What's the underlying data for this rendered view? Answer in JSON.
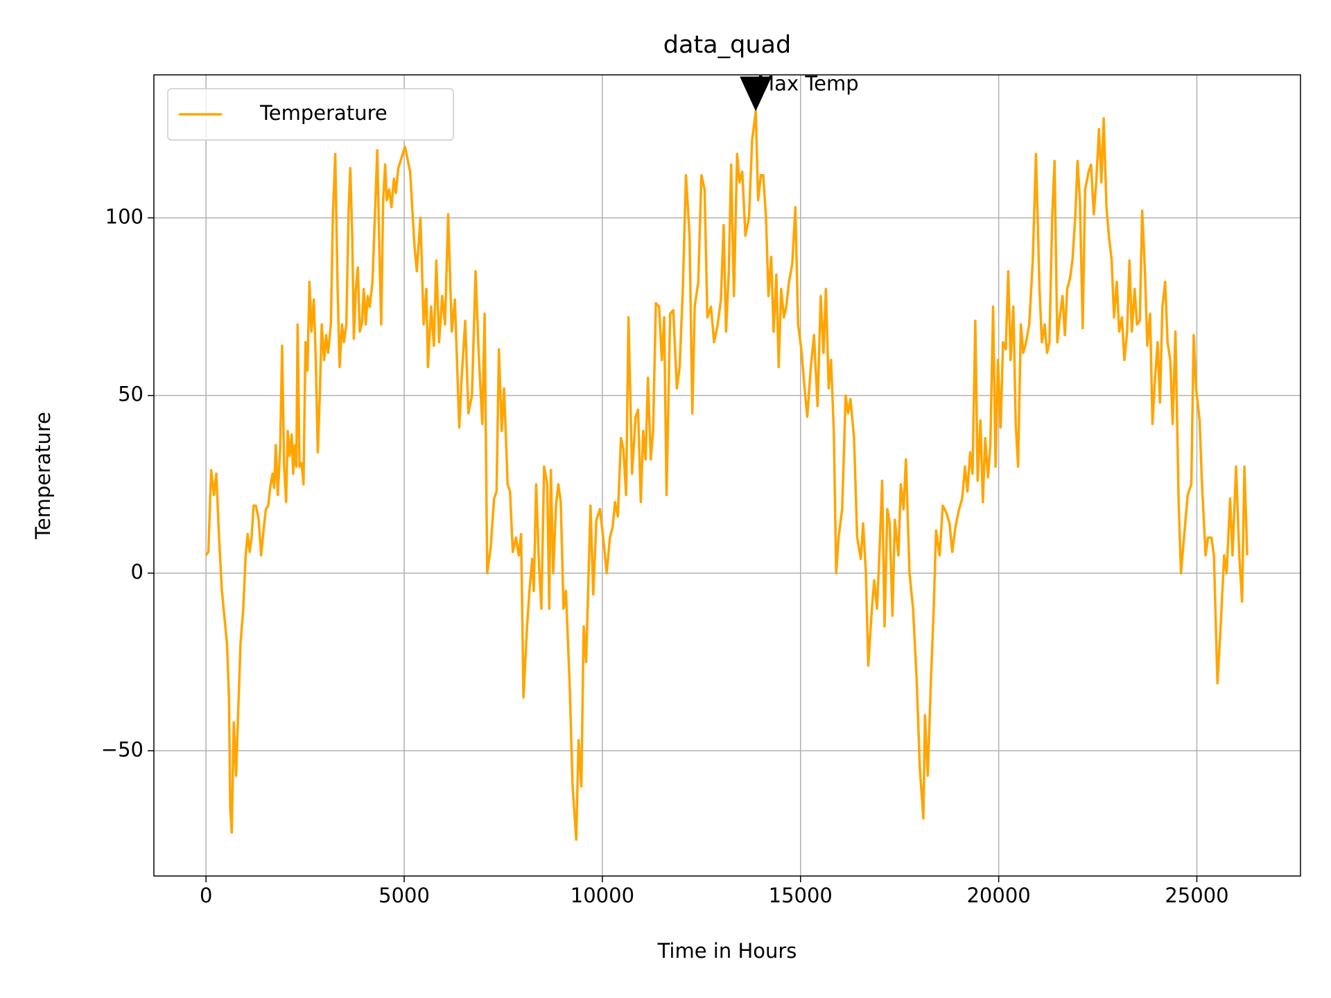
{
  "chart_data": {
    "type": "line",
    "title": "data_quad",
    "xlabel": "Time in Hours",
    "ylabel": "Temperature",
    "xlim": [
      -1315,
      27615
    ],
    "ylim": [
      -85.25,
      140.25
    ],
    "xticks": [
      0,
      5000,
      10000,
      15000,
      20000,
      25000
    ],
    "yticks": [
      {
        "value": -50,
        "label": "−50"
      },
      0,
      50,
      100
    ],
    "grid": true,
    "legend": "upper left",
    "x": [
      0,
      60,
      130,
      200,
      260,
      330,
      400,
      530,
      580,
      610,
      650,
      700,
      760,
      800,
      870,
      940,
      1000,
      1050,
      1100,
      1150,
      1200,
      1260,
      1330,
      1390,
      1450,
      1510,
      1570,
      1630,
      1680,
      1720,
      1760,
      1810,
      1870,
      1920,
      1970,
      2020,
      2060,
      2110,
      2160,
      2200,
      2240,
      2280,
      2310,
      2360,
      2410,
      2460,
      2510,
      2560,
      2610,
      2660,
      2720,
      2770,
      2820,
      2870,
      2920,
      2980,
      3030,
      3080,
      3150,
      3200,
      3260,
      3320,
      3370,
      3430,
      3480,
      3540,
      3600,
      3640,
      3690,
      3730,
      3780,
      3830,
      3880,
      3930,
      3980,
      4030,
      4080,
      4130,
      4200,
      4260,
      4320,
      4380,
      4420,
      4470,
      4520,
      4560,
      4620,
      4680,
      4740,
      4790,
      4850,
      5020,
      5150,
      5260,
      5320,
      5410,
      5490,
      5560,
      5600,
      5680,
      5750,
      5810,
      5880,
      5960,
      6030,
      6110,
      6200,
      6280,
      6390,
      6450,
      6540,
      6620,
      6710,
      6800,
      6880,
      6970,
      7030,
      7095,
      7180,
      7270,
      7330,
      7390,
      7460,
      7520,
      7610,
      7670,
      7740,
      7820,
      7890,
      7950,
      8010,
      8100,
      8160,
      8230,
      8270,
      8330,
      8400,
      8460,
      8530,
      8610,
      8660,
      8700,
      8760,
      8830,
      8890,
      8950,
      9020,
      9080,
      9170,
      9250,
      9340,
      9400,
      9470,
      9530,
      9590,
      9700,
      9770,
      9850,
      9940,
      10020,
      10110,
      10190,
      10260,
      10320,
      10390,
      10470,
      10530,
      10600,
      10660,
      10750,
      10840,
      10900,
      10970,
      11030,
      11090,
      11150,
      11220,
      11280,
      11350,
      11430,
      11500,
      11560,
      11620,
      11710,
      11790,
      11880,
      11950,
      12030,
      12110,
      12200,
      12270,
      12330,
      12420,
      12500,
      12580,
      12650,
      12740,
      12820,
      12910,
      12990,
      13060,
      13120,
      13190,
      13250,
      13320,
      13400,
      13460,
      13530,
      13610,
      13700,
      13780,
      13870,
      13930,
      14000,
      14060,
      14130,
      14190,
      14260,
      14320,
      14390,
      14450,
      14510,
      14580,
      14640,
      14710,
      14790,
      14870,
      14940,
      15020,
      15110,
      15170,
      15260,
      15340,
      15430,
      15510,
      15580,
      15640,
      15710,
      15770,
      15840,
      15900,
      15960,
      16050,
      16140,
      16200,
      16260,
      16350,
      16430,
      16520,
      16580,
      16650,
      16710,
      16800,
      16860,
      16930,
      16990,
      17060,
      17120,
      17190,
      17250,
      17320,
      17380,
      17470,
      17530,
      17600,
      17660,
      17750,
      17840,
      17930,
      18010,
      18100,
      18140,
      18210,
      18290,
      18360,
      18420,
      18510,
      18590,
      18680,
      18760,
      18830,
      18910,
      19000,
      19080,
      19150,
      19210,
      19280,
      19340,
      19410,
      19470,
      19540,
      19600,
      19660,
      19730,
      19790,
      19860,
      19920,
      19980,
      20050,
      20110,
      20180,
      20240,
      20300,
      20370,
      20430,
      20490,
      20560,
      20620,
      20690,
      20770,
      20860,
      20940,
      21030,
      21090,
      21160,
      21220,
      21280,
      21350,
      21410,
      21480,
      21540,
      21610,
      21670,
      21730,
      21800,
      21860,
      21930,
      21990,
      22050,
      22120,
      22180,
      22270,
      22330,
      22400,
      22460,
      22530,
      22590,
      22650,
      22720,
      22780,
      22850,
      22910,
      22980,
      23040,
      23110,
      23170,
      23240,
      23300,
      23360,
      23430,
      23490,
      23560,
      23620,
      23690,
      23750,
      23820,
      23880,
      23940,
      24010,
      24070,
      24130,
      24200,
      24260,
      24330,
      24390,
      24460,
      24540,
      24600,
      24690,
      24770,
      24860,
      24920,
      24980,
      25070,
      25130,
      25220,
      25280,
      25370,
      25430,
      25520,
      25600,
      25690,
      25750,
      25840,
      25900,
      25990,
      26070,
      26140,
      26200,
      26270
    ],
    "series": [
      {
        "name": "Temperature",
        "color": "#ffa500",
        "values": [
          5,
          6,
          29,
          22,
          28,
          10,
          -5,
          -20,
          -35,
          -66,
          -73,
          -42,
          -57,
          -43,
          -20,
          -10,
          5,
          11,
          6,
          10,
          19,
          19,
          15,
          5,
          12,
          18,
          19,
          25,
          28,
          24,
          36,
          22,
          35,
          64,
          30,
          20,
          40,
          33,
          39,
          28,
          36,
          30,
          70,
          30,
          31,
          25,
          65,
          57,
          82,
          68,
          77,
          60,
          34,
          50,
          70,
          60,
          67,
          62,
          70,
          100,
          118,
          80,
          58,
          70,
          65,
          70,
          103,
          114,
          95,
          66,
          80,
          86,
          68,
          70,
          80,
          70,
          78,
          75,
          82,
          100,
          119,
          88,
          70,
          105,
          115,
          105,
          108,
          103,
          111,
          107,
          114,
          120,
          113,
          92,
          85,
          100,
          70,
          80,
          58,
          75,
          64,
          88,
          65,
          78,
          70,
          101,
          68,
          77,
          41,
          55,
          71,
          45,
          50,
          85,
          62,
          42,
          73,
          0,
          7,
          21,
          23,
          63,
          40,
          52,
          25,
          23,
          6,
          10,
          5,
          11,
          -35,
          -15,
          -5,
          4,
          -5,
          25,
          3,
          -10,
          30,
          25,
          -10,
          29,
          0,
          19,
          25,
          20,
          -10,
          -5,
          -30,
          -60,
          -75,
          -47,
          -60,
          -15,
          -25,
          19,
          -6,
          15,
          18,
          10,
          0,
          10,
          13,
          20,
          16,
          38,
          35,
          22,
          72,
          28,
          44,
          46,
          20,
          40,
          32,
          55,
          32,
          40,
          76,
          75,
          60,
          72,
          22,
          73,
          74,
          52,
          58,
          80,
          112,
          95,
          45,
          75,
          82,
          112,
          108,
          72,
          75,
          65,
          70,
          77,
          98,
          68,
          85,
          115,
          78,
          118,
          110,
          113,
          95,
          100,
          122,
          130,
          105,
          112,
          112,
          100,
          78,
          89,
          68,
          84,
          58,
          80,
          72,
          75,
          82,
          87,
          103,
          70,
          63,
          51,
          44,
          58,
          67,
          47,
          78,
          62,
          80,
          52,
          60,
          40,
          0,
          10,
          18,
          50,
          45,
          49,
          38,
          10,
          4,
          14,
          0,
          -26,
          -10,
          -2,
          -10,
          5,
          26,
          -15,
          18,
          14,
          -12,
          15,
          5,
          25,
          18,
          32,
          0,
          -10,
          -30,
          -55,
          -69,
          -40,
          -57,
          -30,
          -10,
          12,
          5,
          19,
          17,
          14,
          6,
          13,
          18,
          21,
          30,
          23,
          34,
          28,
          71,
          26,
          43,
          20,
          38,
          27,
          36,
          75,
          30,
          60,
          41,
          65,
          63,
          85,
          60,
          75,
          42,
          30,
          70,
          62,
          65,
          70,
          88,
          118,
          80,
          65,
          70,
          62,
          65,
          100,
          116,
          65,
          72,
          78,
          67,
          80,
          83,
          88,
          100,
          116,
          105,
          69,
          108,
          113,
          115,
          101,
          110,
          125,
          110,
          128,
          103,
          95,
          88,
          72,
          82,
          68,
          72,
          60,
          68,
          88,
          68,
          80,
          70,
          71,
          102,
          85,
          64,
          73,
          42,
          54,
          65,
          48,
          75,
          82,
          65,
          60,
          42,
          68,
          20,
          0,
          12,
          22,
          25,
          67,
          52,
          43,
          25,
          5,
          10,
          10,
          5,
          -31,
          -15,
          5,
          0,
          21,
          5,
          30,
          5,
          -8,
          30,
          5
        ]
      }
    ],
    "annotations": [
      {
        "text": "Max Temp",
        "x": 13870,
        "y": 130
      }
    ]
  }
}
